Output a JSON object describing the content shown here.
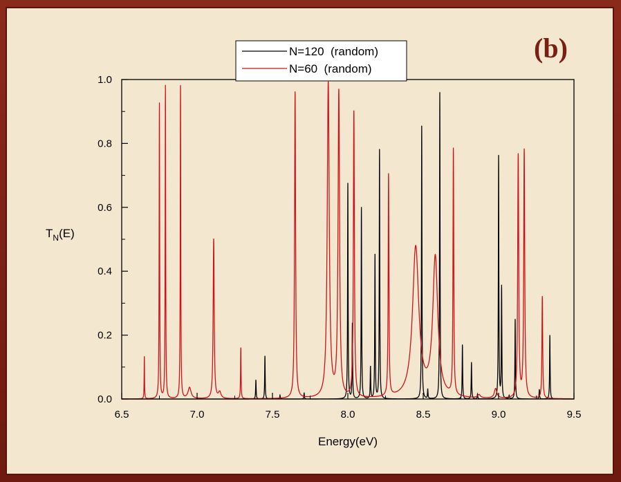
{
  "panel_label": "(b)",
  "chart_data": {
    "type": "line",
    "xlabel": "Energy(eV)",
    "ylabel_main": "T",
    "ylabel_sub": "N",
    "ylabel_tail": "(E)",
    "xlim": [
      6.5,
      9.5
    ],
    "ylim": [
      0.0,
      1.0
    ],
    "xticks": [
      "6.5",
      "7.0",
      "7.5",
      "8.0",
      "8.5",
      "9.0",
      "9.5"
    ],
    "yticks": [
      "0.0",
      "0.2",
      "0.4",
      "0.6",
      "0.8",
      "1.0"
    ],
    "legend_position": "top-center",
    "grid": false,
    "series": [
      {
        "name": "N=120  (random)",
        "color": "#000000",
        "peaks": [
          {
            "x": 7.39,
            "h": 0.06,
            "w": 0.002
          },
          {
            "x": 7.45,
            "h": 0.135,
            "w": 0.002
          },
          {
            "x": 7.55,
            "h": 0.012,
            "w": 0.002
          },
          {
            "x": 7.71,
            "h": 0.02,
            "w": 0.002
          },
          {
            "x": 8.0,
            "h": 0.675,
            "w": 0.002
          },
          {
            "x": 8.03,
            "h": 0.235,
            "w": 0.002
          },
          {
            "x": 8.09,
            "h": 0.6,
            "w": 0.002
          },
          {
            "x": 8.15,
            "h": 0.1,
            "w": 0.002
          },
          {
            "x": 8.18,
            "h": 0.45,
            "w": 0.002
          },
          {
            "x": 8.21,
            "h": 0.78,
            "w": 0.002
          },
          {
            "x": 8.49,
            "h": 0.855,
            "w": 0.002
          },
          {
            "x": 8.53,
            "h": 0.03,
            "w": 0.002
          },
          {
            "x": 8.61,
            "h": 0.96,
            "w": 0.002
          },
          {
            "x": 8.76,
            "h": 0.17,
            "w": 0.002
          },
          {
            "x": 8.82,
            "h": 0.115,
            "w": 0.002
          },
          {
            "x": 8.86,
            "h": 0.015,
            "w": 0.002
          },
          {
            "x": 9.0,
            "h": 0.76,
            "w": 0.002
          },
          {
            "x": 9.02,
            "h": 0.35,
            "w": 0.002
          },
          {
            "x": 9.07,
            "h": 0.01,
            "w": 0.002
          },
          {
            "x": 9.11,
            "h": 0.25,
            "w": 0.002
          },
          {
            "x": 9.27,
            "h": 0.03,
            "w": 0.002
          },
          {
            "x": 9.34,
            "h": 0.2,
            "w": 0.002
          }
        ]
      },
      {
        "name": "N=60  (random)",
        "color": "#d0101a",
        "peaks": [
          {
            "x": 6.65,
            "h": 0.133,
            "w": 0.0015
          },
          {
            "x": 6.75,
            "h": 0.925,
            "w": 0.002
          },
          {
            "x": 6.79,
            "h": 0.98,
            "w": 0.002
          },
          {
            "x": 6.89,
            "h": 0.98,
            "w": 0.002
          },
          {
            "x": 6.95,
            "h": 0.035,
            "w": 0.012
          },
          {
            "x": 7.11,
            "h": 0.5,
            "w": 0.004
          },
          {
            "x": 7.15,
            "h": 0.02,
            "w": 0.01
          },
          {
            "x": 7.29,
            "h": 0.16,
            "w": 0.002
          },
          {
            "x": 7.65,
            "h": 0.96,
            "w": 0.004
          },
          {
            "x": 7.87,
            "h": 0.985,
            "w": 0.008
          },
          {
            "x": 7.94,
            "h": 0.955,
            "w": 0.006
          },
          {
            "x": 8.04,
            "h": 0.895,
            "w": 0.004
          },
          {
            "x": 8.27,
            "h": 0.695,
            "w": 0.003
          },
          {
            "x": 8.45,
            "h": 0.47,
            "w": 0.025
          },
          {
            "x": 8.58,
            "h": 0.435,
            "w": 0.02
          },
          {
            "x": 8.7,
            "h": 0.77,
            "w": 0.003
          },
          {
            "x": 8.87,
            "h": 0.01,
            "w": 0.01
          },
          {
            "x": 8.98,
            "h": 0.03,
            "w": 0.01
          },
          {
            "x": 9.13,
            "h": 0.76,
            "w": 0.004
          },
          {
            "x": 9.17,
            "h": 0.775,
            "w": 0.004
          },
          {
            "x": 9.29,
            "h": 0.32,
            "w": 0.003
          }
        ]
      }
    ]
  }
}
